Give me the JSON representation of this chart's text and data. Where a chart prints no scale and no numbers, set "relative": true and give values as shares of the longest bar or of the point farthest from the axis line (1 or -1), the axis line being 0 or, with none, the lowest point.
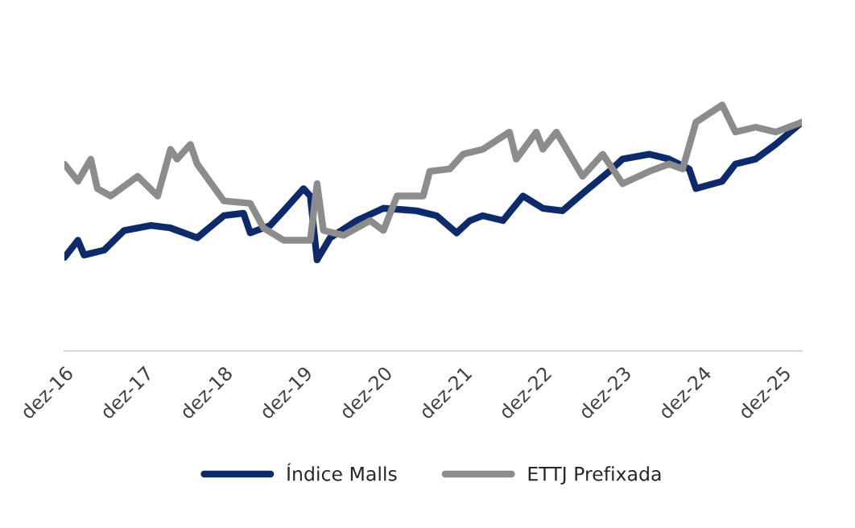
{
  "chart_data": {
    "type": "line",
    "relative": true,
    "legend": "bottom",
    "grid": false,
    "xlim": [
      "2016-12",
      "2026-03"
    ],
    "xticks": [
      {
        "value": "2016-12",
        "label": "dez-16"
      },
      {
        "value": "2017-12",
        "label": "dez-17"
      },
      {
        "value": "2018-12",
        "label": "dez-18"
      },
      {
        "value": "2019-12",
        "label": "dez-19"
      },
      {
        "value": "2020-12",
        "label": "dez-20"
      },
      {
        "value": "2021-12",
        "label": "dez-21"
      },
      {
        "value": "2022-12",
        "label": "dez-22"
      },
      {
        "value": "2023-12",
        "label": "dez-23"
      },
      {
        "value": "2024-12",
        "label": "dez-24"
      },
      {
        "value": "2025-12",
        "label": "dez-25"
      }
    ],
    "series": [
      {
        "name": "Índice Malls",
        "color": "#0d2a6b",
        "x": [
          "2016-12",
          "2017-02",
          "2017-03",
          "2017-06",
          "2017-09",
          "2018-01",
          "2018-04",
          "2018-08",
          "2018-12",
          "2019-03",
          "2019-04",
          "2019-07",
          "2019-09",
          "2019-12",
          "2020-01",
          "2020-02",
          "2020-04",
          "2020-08",
          "2020-12",
          "2021-05",
          "2021-08",
          "2021-11",
          "2022-01",
          "2022-03",
          "2022-06",
          "2022-09",
          "2022-12",
          "2023-03",
          "2023-06",
          "2023-10",
          "2023-12",
          "2024-04",
          "2024-07",
          "2024-10",
          "2024-11",
          "2025-03",
          "2025-05",
          "2025-08",
          "2025-11",
          "2026-03"
        ],
        "values": [
          0.38,
          0.45,
          0.39,
          0.41,
          0.49,
          0.51,
          0.5,
          0.46,
          0.55,
          0.56,
          0.48,
          0.51,
          0.57,
          0.66,
          0.63,
          0.37,
          0.46,
          0.53,
          0.58,
          0.57,
          0.55,
          0.48,
          0.53,
          0.55,
          0.53,
          0.63,
          0.58,
          0.57,
          0.64,
          0.73,
          0.78,
          0.8,
          0.78,
          0.74,
          0.66,
          0.69,
          0.76,
          0.78,
          0.84,
          0.93
        ]
      },
      {
        "name": "ETTJ Prefixada",
        "color": "#8c8c8c",
        "x": [
          "2016-12",
          "2017-02",
          "2017-04",
          "2017-05",
          "2017-07",
          "2017-11",
          "2018-02",
          "2018-04",
          "2018-05",
          "2018-07",
          "2018-08",
          "2018-12",
          "2019-04",
          "2019-06",
          "2019-09",
          "2020-01",
          "2020-02",
          "2020-03",
          "2020-06",
          "2020-10",
          "2020-12",
          "2021-02",
          "2021-06",
          "2021-07",
          "2021-10",
          "2021-12",
          "2022-03",
          "2022-07",
          "2022-08",
          "2022-11",
          "2022-12",
          "2023-02",
          "2023-06",
          "2023-09",
          "2023-12",
          "2024-04",
          "2024-07",
          "2024-09",
          "2024-11",
          "2025-03",
          "2025-05",
          "2025-08",
          "2025-11",
          "2026-01",
          "2026-03"
        ],
        "values": [
          0.76,
          0.69,
          0.78,
          0.66,
          0.63,
          0.71,
          0.63,
          0.82,
          0.78,
          0.84,
          0.76,
          0.61,
          0.6,
          0.5,
          0.45,
          0.45,
          0.68,
          0.49,
          0.47,
          0.53,
          0.49,
          0.63,
          0.63,
          0.73,
          0.74,
          0.8,
          0.82,
          0.89,
          0.78,
          0.89,
          0.82,
          0.89,
          0.71,
          0.8,
          0.68,
          0.73,
          0.76,
          0.74,
          0.93,
          1.0,
          0.89,
          0.91,
          0.89,
          0.91,
          0.93
        ]
      }
    ]
  }
}
